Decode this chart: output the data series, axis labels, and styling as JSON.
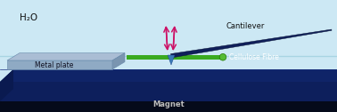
{
  "fig_width": 3.78,
  "fig_height": 1.26,
  "dpi": 100,
  "bg_water_color": "#cce8f4",
  "bg_magnet_color": "#0d1f5c",
  "black_base_color": "#050a1a",
  "metal_plate_top_color": "#aabdd4",
  "metal_plate_front_color": "#8faac4",
  "metal_plate_side_color": "#7a95b0",
  "cellulose_color": "#3aaa20",
  "cantilever_color": "#0f1f5a",
  "arrow_color": "#cc1166",
  "tip_color": "#3a7ab8",
  "h2o_text": "H₂O",
  "cantilever_text": "Cantilever",
  "metal_plate_text": "Metal plate",
  "cellulose_text": "Cellulose Fibre",
  "magnet_text": "Magnet",
  "text_color": "#111111",
  "white_text": "#ffffff",
  "magnet_text_color": "#bbbbbb"
}
